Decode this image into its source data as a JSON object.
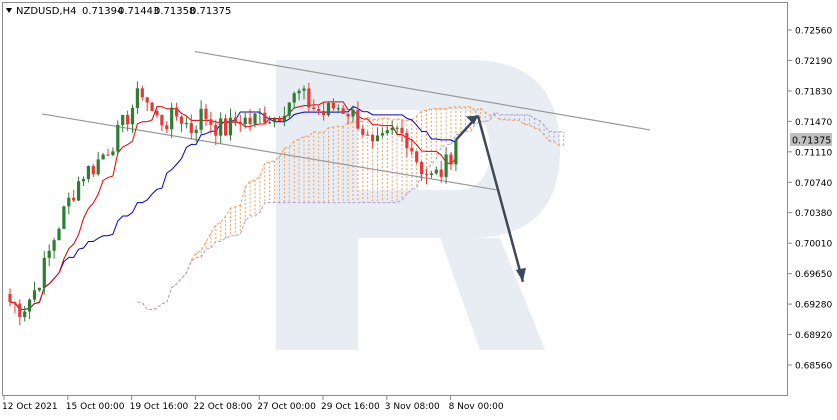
{
  "header": {
    "symbol": "NZDUSD,H4",
    "open": "0.71394",
    "high": "0.71443",
    "low": "0.71358",
    "close": "0.71375"
  },
  "price_axis": {
    "ticks": [
      "0.72560",
      "0.72190",
      "0.71830",
      "0.71470",
      "0.71110",
      "0.70740",
      "0.70380",
      "0.70010",
      "0.69650",
      "0.69280",
      "0.68920",
      "0.68560"
    ],
    "current_price_label": "0.71375"
  },
  "time_axis": {
    "ticks": [
      "12 Oct 2021",
      "15 Oct 00:00",
      "19 Oct 16:00",
      "22 Oct 08:00",
      "27 Oct 00:00",
      "29 Oct 16:00",
      "3 Nov 08:00",
      "8 Nov 00:00"
    ]
  },
  "colors": {
    "bull": "#2e7d32",
    "bear": "#e53935",
    "tenkan": "#e00000",
    "kijun": "#0000c8",
    "cloud_bull": "#f0a060",
    "cloud_bear": "#b0a0d8",
    "channel": "#9a9a9a",
    "forecast_arrow": "#3c4a58",
    "watermark": "#e8edf3",
    "price_label_bg": "#c0c0c0"
  },
  "chart_data": {
    "type": "candlestick",
    "symbol": "NZDUSD",
    "timeframe": "H4",
    "ylim": [
      0.6856,
      0.7275
    ],
    "x_ticks": [
      "12 Oct 2021",
      "15 Oct 00:00",
      "19 Oct 16:00",
      "22 Oct 08:00",
      "27 Oct 00:00",
      "29 Oct 16:00",
      "3 Nov 08:00",
      "8 Nov 00:00"
    ],
    "indicators": [
      "Ichimoku Kinko Hyo"
    ],
    "close_path": [
      0.6935,
      0.6925,
      0.6948,
      0.6985,
      0.703,
      0.7065,
      0.7095,
      0.7105,
      0.7125,
      0.7145,
      0.7175,
      0.72,
      0.7165,
      0.716,
      0.717,
      0.715,
      0.7172,
      0.7155,
      0.715,
      0.7165,
      0.716,
      0.717,
      0.7165,
      0.7185,
      0.7195,
      0.718,
      0.717,
      0.718,
      0.7175,
      0.716,
      0.7125,
      0.7135,
      0.715,
      0.714,
      0.7105,
      0.709,
      0.71,
      0.7135
    ],
    "current_price": 0.71375,
    "channel": {
      "upper": [
        [
          0.7248,
          0.715
        ]
      ],
      "lower": [
        [
          0.717,
          0.7075
        ]
      ]
    },
    "forecast": {
      "peak": 0.7168,
      "target": 0.696
    }
  }
}
